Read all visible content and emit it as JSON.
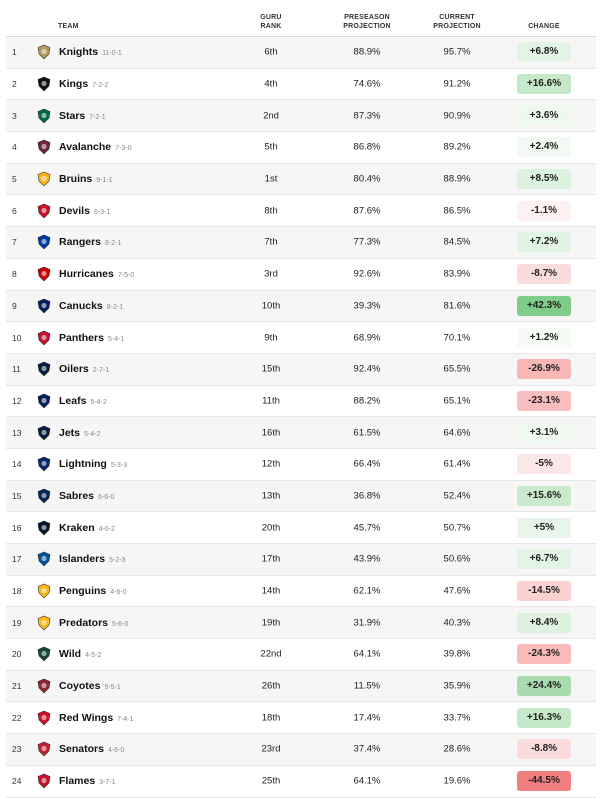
{
  "headers": {
    "team": "TEAM",
    "rank_1": "GURU",
    "rank_2": "RANK",
    "pre_1": "PRESEASON",
    "pre_2": "PROJECTION",
    "cur_1": "CURRENT",
    "cur_2": "PROJECTION",
    "change": "CHANGE"
  },
  "rows": [
    {
      "num": "1",
      "name": "Knights",
      "record": "11-0-1",
      "rank": "6th",
      "pre": "88.9%",
      "cur": "95.7%",
      "change": "+6.8%",
      "chg_bg": "#e3f4e5",
      "logo": "#b4975a",
      "icon": "vegas-golden-knights-logo-icon"
    },
    {
      "num": "2",
      "name": "Kings",
      "record": "7-2-2",
      "rank": "4th",
      "pre": "74.6%",
      "cur": "91.2%",
      "change": "+16.6%",
      "chg_bg": "#c5e9c9",
      "logo": "#111111",
      "icon": "la-kings-logo-icon"
    },
    {
      "num": "3",
      "name": "Stars",
      "record": "7-2-1",
      "rank": "2nd",
      "pre": "87.3%",
      "cur": "90.9%",
      "change": "+3.6%",
      "chg_bg": "#edf8ee",
      "logo": "#006847",
      "icon": "dallas-stars-logo-icon"
    },
    {
      "num": "4",
      "name": "Avalanche",
      "record": "7-3-0",
      "rank": "5th",
      "pre": "86.8%",
      "cur": "89.2%",
      "change": "+2.4%",
      "chg_bg": "#f2faf3",
      "logo": "#6f263d",
      "icon": "colorado-avalanche-logo-icon"
    },
    {
      "num": "5",
      "name": "Bruins",
      "record": "9-1-1",
      "rank": "1st",
      "pre": "80.4%",
      "cur": "88.9%",
      "change": "+8.5%",
      "chg_bg": "#def2e0",
      "logo": "#fcb514",
      "icon": "boston-bruins-logo-icon"
    },
    {
      "num": "6",
      "name": "Devils",
      "record": "6-3-1",
      "rank": "8th",
      "pre": "87.6%",
      "cur": "86.5%",
      "change": "-1.1%",
      "chg_bg": "#fdf1f1",
      "logo": "#ce1126",
      "icon": "new-jersey-devils-logo-icon"
    },
    {
      "num": "7",
      "name": "Rangers",
      "record": "8-2-1",
      "rank": "7th",
      "pre": "77.3%",
      "cur": "84.5%",
      "change": "+7.2%",
      "chg_bg": "#e1f3e3",
      "logo": "#0038a8",
      "icon": "new-york-rangers-logo-icon"
    },
    {
      "num": "8",
      "name": "Hurricanes",
      "record": "7-5-0",
      "rank": "3rd",
      "pre": "92.6%",
      "cur": "83.9%",
      "change": "-8.7%",
      "chg_bg": "#fbdcdc",
      "logo": "#cc0000",
      "icon": "carolina-hurricanes-logo-icon"
    },
    {
      "num": "9",
      "name": "Canucks",
      "record": "8-2-1",
      "rank": "10th",
      "pre": "39.3%",
      "cur": "81.6%",
      "change": "+42.3%",
      "chg_bg": "#7fcd88",
      "logo": "#00205b",
      "icon": "vancouver-canucks-logo-icon"
    },
    {
      "num": "10",
      "name": "Panthers",
      "record": "5-4-1",
      "rank": "9th",
      "pre": "68.9%",
      "cur": "70.1%",
      "change": "+1.2%",
      "chg_bg": "#f6fbf6",
      "logo": "#c8102e",
      "icon": "florida-panthers-logo-icon"
    },
    {
      "num": "11",
      "name": "Oilers",
      "record": "2-7-1",
      "rank": "15th",
      "pre": "92.4%",
      "cur": "65.5%",
      "change": "-26.9%",
      "chg_bg": "#f8b6b6",
      "logo": "#041e42",
      "icon": "edmonton-oilers-logo-icon"
    },
    {
      "num": "12",
      "name": "Leafs",
      "record": "5-4-2",
      "rank": "11th",
      "pre": "88.2%",
      "cur": "65.1%",
      "change": "-23.1%",
      "chg_bg": "#f9bdbd",
      "logo": "#00205b",
      "icon": "toronto-maple-leafs-logo-icon"
    },
    {
      "num": "13",
      "name": "Jets",
      "record": "5-4-2",
      "rank": "16th",
      "pre": "61.5%",
      "cur": "64.6%",
      "change": "+3.1%",
      "chg_bg": "#eff9f0",
      "logo": "#041e42",
      "icon": "winnipeg-jets-logo-icon"
    },
    {
      "num": "14",
      "name": "Lightning",
      "record": "5-3-3",
      "rank": "12th",
      "pre": "66.4%",
      "cur": "61.4%",
      "change": "-5%",
      "chg_bg": "#fde8e8",
      "logo": "#002868",
      "icon": "tampa-bay-lightning-logo-icon"
    },
    {
      "num": "15",
      "name": "Sabres",
      "record": "6-6-0",
      "rank": "13th",
      "pre": "36.8%",
      "cur": "52.4%",
      "change": "+15.6%",
      "chg_bg": "#c9ebcc",
      "logo": "#002654",
      "icon": "buffalo-sabres-logo-icon"
    },
    {
      "num": "16",
      "name": "Kraken",
      "record": "4-6-2",
      "rank": "20th",
      "pre": "45.7%",
      "cur": "50.7%",
      "change": "+5%",
      "chg_bg": "#e8f6ea",
      "logo": "#001628",
      "icon": "seattle-kraken-logo-icon"
    },
    {
      "num": "17",
      "name": "Islanders",
      "record": "5-2-3",
      "rank": "17th",
      "pre": "43.9%",
      "cur": "50.6%",
      "change": "+6.7%",
      "chg_bg": "#e3f4e5",
      "logo": "#00539b",
      "icon": "new-york-islanders-logo-icon"
    },
    {
      "num": "18",
      "name": "Penguins",
      "record": "4-6-0",
      "rank": "14th",
      "pre": "62.1%",
      "cur": "47.6%",
      "change": "-14.5%",
      "chg_bg": "#fad0d0",
      "logo": "#fcb514",
      "icon": "pittsburgh-penguins-logo-icon"
    },
    {
      "num": "19",
      "name": "Predators",
      "record": "5-6-0",
      "rank": "19th",
      "pre": "31.9%",
      "cur": "40.3%",
      "change": "+8.4%",
      "chg_bg": "#def2e0",
      "logo": "#ffb81c",
      "icon": "nashville-predators-logo-icon"
    },
    {
      "num": "20",
      "name": "Wild",
      "record": "4-5-2",
      "rank": "22nd",
      "pre": "64.1%",
      "cur": "39.8%",
      "change": "-24.3%",
      "chg_bg": "#f9baba",
      "logo": "#154734",
      "icon": "minnesota-wild-logo-icon"
    },
    {
      "num": "21",
      "name": "Coyotes",
      "record": "5-5-1",
      "rank": "26th",
      "pre": "11.5%",
      "cur": "35.9%",
      "change": "+24.4%",
      "chg_bg": "#a8dcae",
      "logo": "#8c2633",
      "icon": "arizona-coyotes-logo-icon"
    },
    {
      "num": "22",
      "name": "Red Wings",
      "record": "7-4-1",
      "rank": "18th",
      "pre": "17.4%",
      "cur": "33.7%",
      "change": "+16.3%",
      "chg_bg": "#c6e9ca",
      "logo": "#ce1126",
      "icon": "detroit-red-wings-logo-icon"
    },
    {
      "num": "23",
      "name": "Senators",
      "record": "4-6-0",
      "rank": "23rd",
      "pre": "37.4%",
      "cur": "28.6%",
      "change": "-8.8%",
      "chg_bg": "#fbdcdc",
      "logo": "#c52032",
      "icon": "ottawa-senators-logo-icon"
    },
    {
      "num": "24",
      "name": "Flames",
      "record": "3-7-1",
      "rank": "25th",
      "pre": "64.1%",
      "cur": "19.6%",
      "change": "-44.5%",
      "chg_bg": "#f27f7f",
      "logo": "#c8102e",
      "icon": "calgary-flames-logo-icon"
    }
  ]
}
